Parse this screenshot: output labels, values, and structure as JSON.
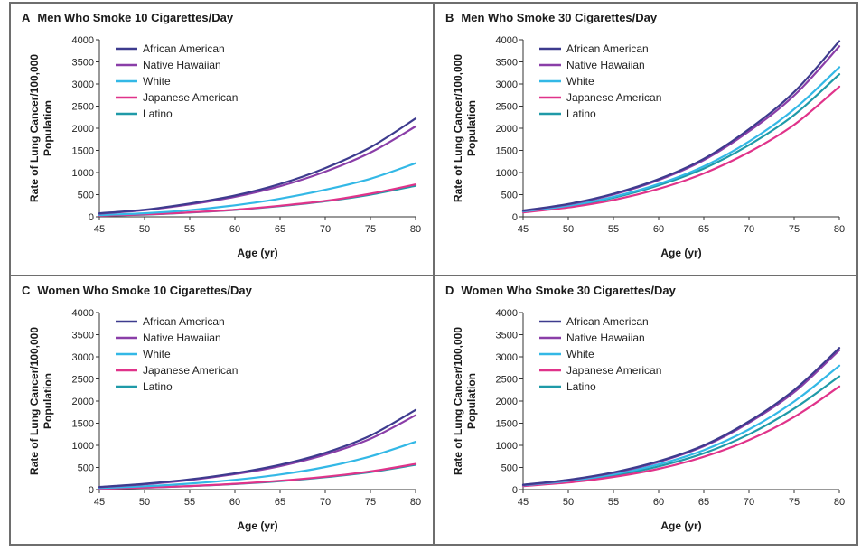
{
  "chart_data": [
    {
      "type": "line",
      "panel_letter": "A",
      "title": "Men Who Smoke 10 Cigarettes/Day",
      "xlabel": "Age (yr)",
      "ylabel": [
        "Rate of Lung Cancer/100,000",
        "Population"
      ],
      "xlim": [
        45,
        80
      ],
      "ylim": [
        0,
        4000
      ],
      "xticks": [
        45,
        50,
        55,
        60,
        65,
        70,
        75,
        80
      ],
      "yticks": [
        0,
        500,
        1000,
        1500,
        2000,
        2500,
        3000,
        3500,
        4000
      ],
      "x": [
        45,
        50,
        55,
        60,
        65,
        70,
        75,
        80
      ],
      "legend_position": "top-left",
      "series": [
        {
          "name": "African American",
          "color": "#3d3b8e",
          "values": [
            80,
            160,
            300,
            480,
            740,
            1100,
            1570,
            2220
          ]
        },
        {
          "name": "Native Hawaiian",
          "color": "#8a3ea8",
          "values": [
            70,
            150,
            280,
            450,
            690,
            1020,
            1450,
            2040
          ]
        },
        {
          "name": "White",
          "color": "#33b8e6",
          "values": [
            40,
            80,
            150,
            260,
            410,
            610,
            860,
            1210
          ]
        },
        {
          "name": "Japanese American",
          "color": "#e0338a",
          "values": [
            25,
            55,
            100,
            160,
            250,
            360,
            520,
            730
          ]
        },
        {
          "name": "Latino",
          "color": "#1f9aa8",
          "values": [
            25,
            50,
            95,
            155,
            240,
            350,
            500,
            700
          ]
        }
      ]
    },
    {
      "type": "line",
      "panel_letter": "B",
      "title": "Men Who Smoke 30 Cigarettes/Day",
      "xlabel": "Age (yr)",
      "ylabel": [
        "Rate of Lung Cancer/100,000",
        "Population"
      ],
      "xlim": [
        45,
        80
      ],
      "ylim": [
        0,
        4000
      ],
      "xticks": [
        45,
        50,
        55,
        60,
        65,
        70,
        75,
        80
      ],
      "yticks": [
        0,
        500,
        1000,
        1500,
        2000,
        2500,
        3000,
        3500,
        4000
      ],
      "x": [
        45,
        50,
        55,
        60,
        65,
        70,
        75,
        80
      ],
      "legend_position": "top-left",
      "series": [
        {
          "name": "African American",
          "color": "#3d3b8e",
          "values": [
            140,
            290,
            520,
            850,
            1310,
            1980,
            2820,
            3970
          ]
        },
        {
          "name": "Native Hawaiian",
          "color": "#8a3ea8",
          "values": [
            135,
            280,
            505,
            830,
            1280,
            1930,
            2740,
            3850
          ]
        },
        {
          "name": "White",
          "color": "#33b8e6",
          "values": [
            120,
            250,
            450,
            740,
            1140,
            1700,
            2430,
            3380
          ]
        },
        {
          "name": "Japanese American",
          "color": "#e0338a",
          "values": [
            100,
            210,
            380,
            630,
            980,
            1460,
            2080,
            2940
          ]
        },
        {
          "name": "Latino",
          "color": "#1f9aa8",
          "values": [
            110,
            235,
            430,
            710,
            1090,
            1620,
            2300,
            3220
          ]
        }
      ]
    },
    {
      "type": "line",
      "panel_letter": "C",
      "title": "Women Who Smoke 10 Cigarettes/Day",
      "xlabel": "Age (yr)",
      "ylabel": [
        "Rate of Lung Cancer/100,000",
        "Population"
      ],
      "xlim": [
        45,
        80
      ],
      "ylim": [
        0,
        4000
      ],
      "xticks": [
        45,
        50,
        55,
        60,
        65,
        70,
        75,
        80
      ],
      "yticks": [
        0,
        500,
        1000,
        1500,
        2000,
        2500,
        3000,
        3500,
        4000
      ],
      "x": [
        45,
        50,
        55,
        60,
        65,
        70,
        75,
        80
      ],
      "legend_position": "top-left",
      "series": [
        {
          "name": "African American",
          "color": "#3d3b8e",
          "values": [
            60,
            130,
            230,
            370,
            560,
            830,
            1220,
            1800
          ]
        },
        {
          "name": "Native Hawaiian",
          "color": "#8a3ea8",
          "values": [
            55,
            120,
            215,
            350,
            530,
            790,
            1150,
            1680
          ]
        },
        {
          "name": "White",
          "color": "#33b8e6",
          "values": [
            35,
            75,
            135,
            220,
            340,
            510,
            750,
            1080
          ]
        },
        {
          "name": "Japanese American",
          "color": "#e0338a",
          "values": [
            20,
            45,
            80,
            130,
            200,
            290,
            410,
            580
          ]
        },
        {
          "name": "Latino",
          "color": "#1f9aa8",
          "values": [
            20,
            42,
            77,
            125,
            190,
            280,
            395,
            560
          ]
        }
      ]
    },
    {
      "type": "line",
      "panel_letter": "D",
      "title": "Women Who Smoke 30 Cigarettes/Day",
      "xlabel": "Age (yr)",
      "ylabel": [
        "Rate of Lung Cancer/100,000",
        "Population"
      ],
      "xlim": [
        45,
        80
      ],
      "ylim": [
        0,
        4000
      ],
      "xticks": [
        45,
        50,
        55,
        60,
        65,
        70,
        75,
        80
      ],
      "yticks": [
        0,
        500,
        1000,
        1500,
        2000,
        2500,
        3000,
        3500,
        4000
      ],
      "x": [
        45,
        50,
        55,
        60,
        65,
        70,
        75,
        80
      ],
      "legend_position": "top-left",
      "series": [
        {
          "name": "African American",
          "color": "#3d3b8e",
          "values": [
            110,
            220,
            390,
            640,
            1000,
            1540,
            2250,
            3200
          ]
        },
        {
          "name": "Native Hawaiian",
          "color": "#8a3ea8",
          "values": [
            105,
            215,
            380,
            625,
            980,
            1510,
            2200,
            3150
          ]
        },
        {
          "name": "White",
          "color": "#33b8e6",
          "values": [
            95,
            195,
            345,
            570,
            890,
            1360,
            1990,
            2800
          ]
        },
        {
          "name": "Japanese American",
          "color": "#e0338a",
          "values": [
            80,
            160,
            285,
            470,
            740,
            1120,
            1640,
            2330
          ]
        },
        {
          "name": "Latino",
          "color": "#1f9aa8",
          "values": [
            88,
            180,
            320,
            525,
            820,
            1250,
            1830,
            2560
          ]
        }
      ]
    }
  ]
}
